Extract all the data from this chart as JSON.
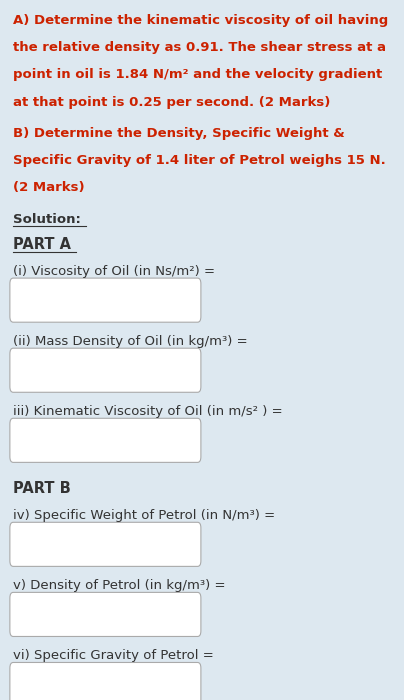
{
  "bg_color": "#dde8f0",
  "text_color_red": "#cc2200",
  "text_color_dark": "#333333",
  "part_a_header": "PART A",
  "part_b_header": "PART B",
  "solution_label": "Solution:",
  "para_a": "A) Determine the kinematic viscosity of oil having\nthe relative density as 0.91. The shear stress at a\npoint in oil is 1.84 N/m² and the velocity gradient\nat that point is 0.25 per second. (2 Marks)",
  "para_b": "B) Determine the Density, Specific Weight &\nSpecific Gravity of 1.4 liter of Petrol weighs 15 N.\n(2 Marks)",
  "items": [
    "(i) Viscosity of Oil (in Ns/m²) =",
    "(ii) Mass Density of Oil (in kg/m³) =",
    "iii) Kinematic Viscosity of Oil (in m/s² ) =",
    "iv) Specific Weight of Petrol (in N/m³) =",
    "v) Density of Petrol (in kg/m³) =",
    "vi) Specific Gravity of Petrol ="
  ],
  "font_size_body": 9.5,
  "font_size_label": 9.5,
  "font_size_header": 10.5
}
